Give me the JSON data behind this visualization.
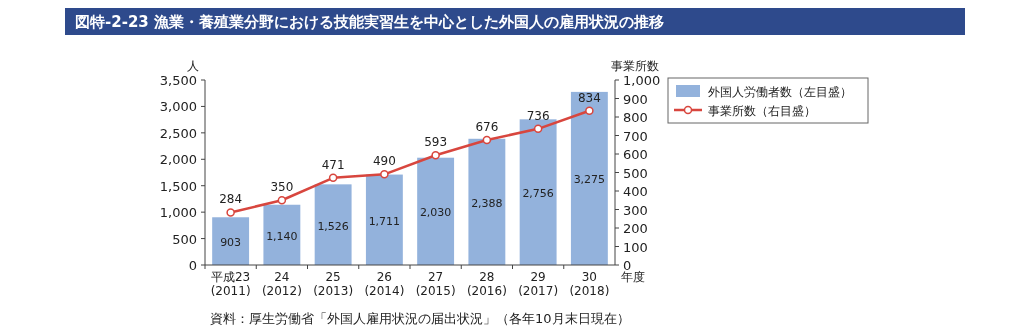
{
  "chart_data": {
    "type": "bar",
    "title": "図特-2-23 漁業・養殖業分野における技能実習生を中心とした外国人の雇用状況の推移",
    "categories": [
      "平成23\n(2011)",
      "24\n(2012)",
      "25\n(2013)",
      "26\n(2014)",
      "27\n(2015)",
      "28\n(2016)",
      "29\n(2017)",
      "30\n(2018)"
    ],
    "xlabel": "年度",
    "ylabel": "人",
    "y2label": "事業所数",
    "series": [
      {
        "name": "外国人労働者数（左目盛）",
        "color": "#93b2dc",
        "values": [
          903,
          1140,
          1526,
          1711,
          2030,
          2388,
          2756,
          3275
        ],
        "value_labels": [
          "903",
          "1,140",
          "1,526",
          "1,711",
          "2,030",
          "2,388",
          "2,756",
          "3,275"
        ]
      },
      {
        "name": "事業所数（右目盛）",
        "type": "line",
        "axis": "y2",
        "color": "#d8463e",
        "marker": "circle",
        "values": [
          284,
          350,
          471,
          490,
          593,
          676,
          736,
          834
        ],
        "value_labels": [
          "284",
          "350",
          "471",
          "490",
          "593",
          "676",
          "736",
          "834"
        ]
      }
    ],
    "ylim": [
      0,
      3500
    ],
    "yticks": [
      0,
      500,
      {
        "value": 1000,
        "label": "1,000"
      },
      {
        "value": 1500,
        "label": "1,500"
      },
      {
        "value": 2000,
        "label": "2,000"
      },
      {
        "value": 2500,
        "label": "2,500"
      },
      {
        "value": 3000,
        "label": "3,000"
      },
      {
        "value": 3500,
        "label": "3,500"
      }
    ],
    "y2lim": [
      0,
      1000
    ],
    "y2ticks": [
      0,
      100,
      200,
      300,
      400,
      500,
      600,
      700,
      800,
      900,
      {
        "value": 1000,
        "label": "1,000"
      }
    ],
    "legend": "right",
    "grid": false,
    "annotations": [
      "資料：厚生労働省「外国人雇用状況の届出状況」（各年10月末日現在）"
    ]
  }
}
